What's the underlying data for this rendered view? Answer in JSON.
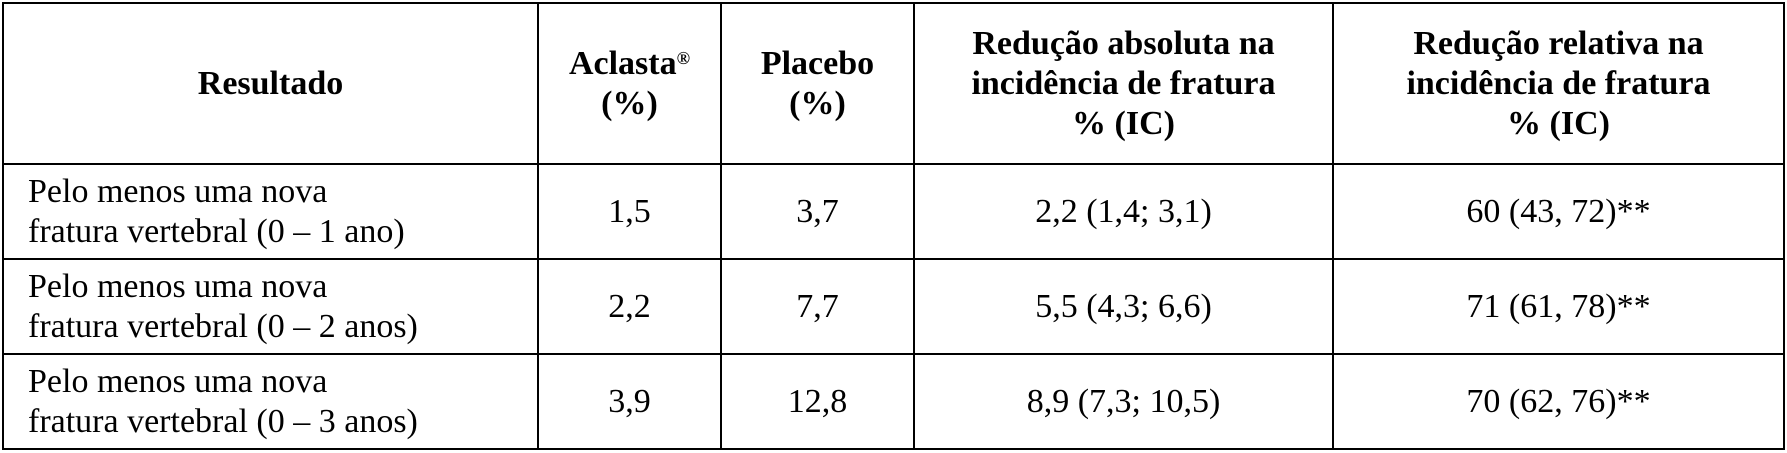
{
  "table": {
    "headers": {
      "resultado": "Resultado",
      "aclasta_name": "Aclasta",
      "aclasta_mark": "®",
      "aclasta_unit": "(%)",
      "placebo_name": "Placebo",
      "placebo_unit": "(%)",
      "abs_line1": "Redução absoluta na",
      "abs_line2": "incidência de fratura",
      "abs_line3": "% (IC)",
      "rel_line1": "Redução relativa na",
      "rel_line2": "incidência de fratura",
      "rel_line3": "% (IC)"
    },
    "rows": [
      {
        "label_line1": "Pelo menos uma nova",
        "label_line2": "fratura vertebral (0 – 1 ano)",
        "aclasta": "1,5",
        "placebo": "3,7",
        "absolute": "2,2 (1,4; 3,1)",
        "relative": "60 (43, 72)**"
      },
      {
        "label_line1": "Pelo menos uma nova",
        "label_line2": "fratura vertebral (0 – 2 anos)",
        "aclasta": "2,2",
        "placebo": "7,7",
        "absolute": "5,5 (4,3; 6,6)",
        "relative": "71 (61, 78)**"
      },
      {
        "label_line1": "Pelo menos uma nova",
        "label_line2": "fratura vertebral (0 – 3 anos)",
        "aclasta": "3,9",
        "placebo": "12,8",
        "absolute": "8,9 (7,3; 10,5)",
        "relative": "70 (62, 76)**"
      }
    ]
  }
}
